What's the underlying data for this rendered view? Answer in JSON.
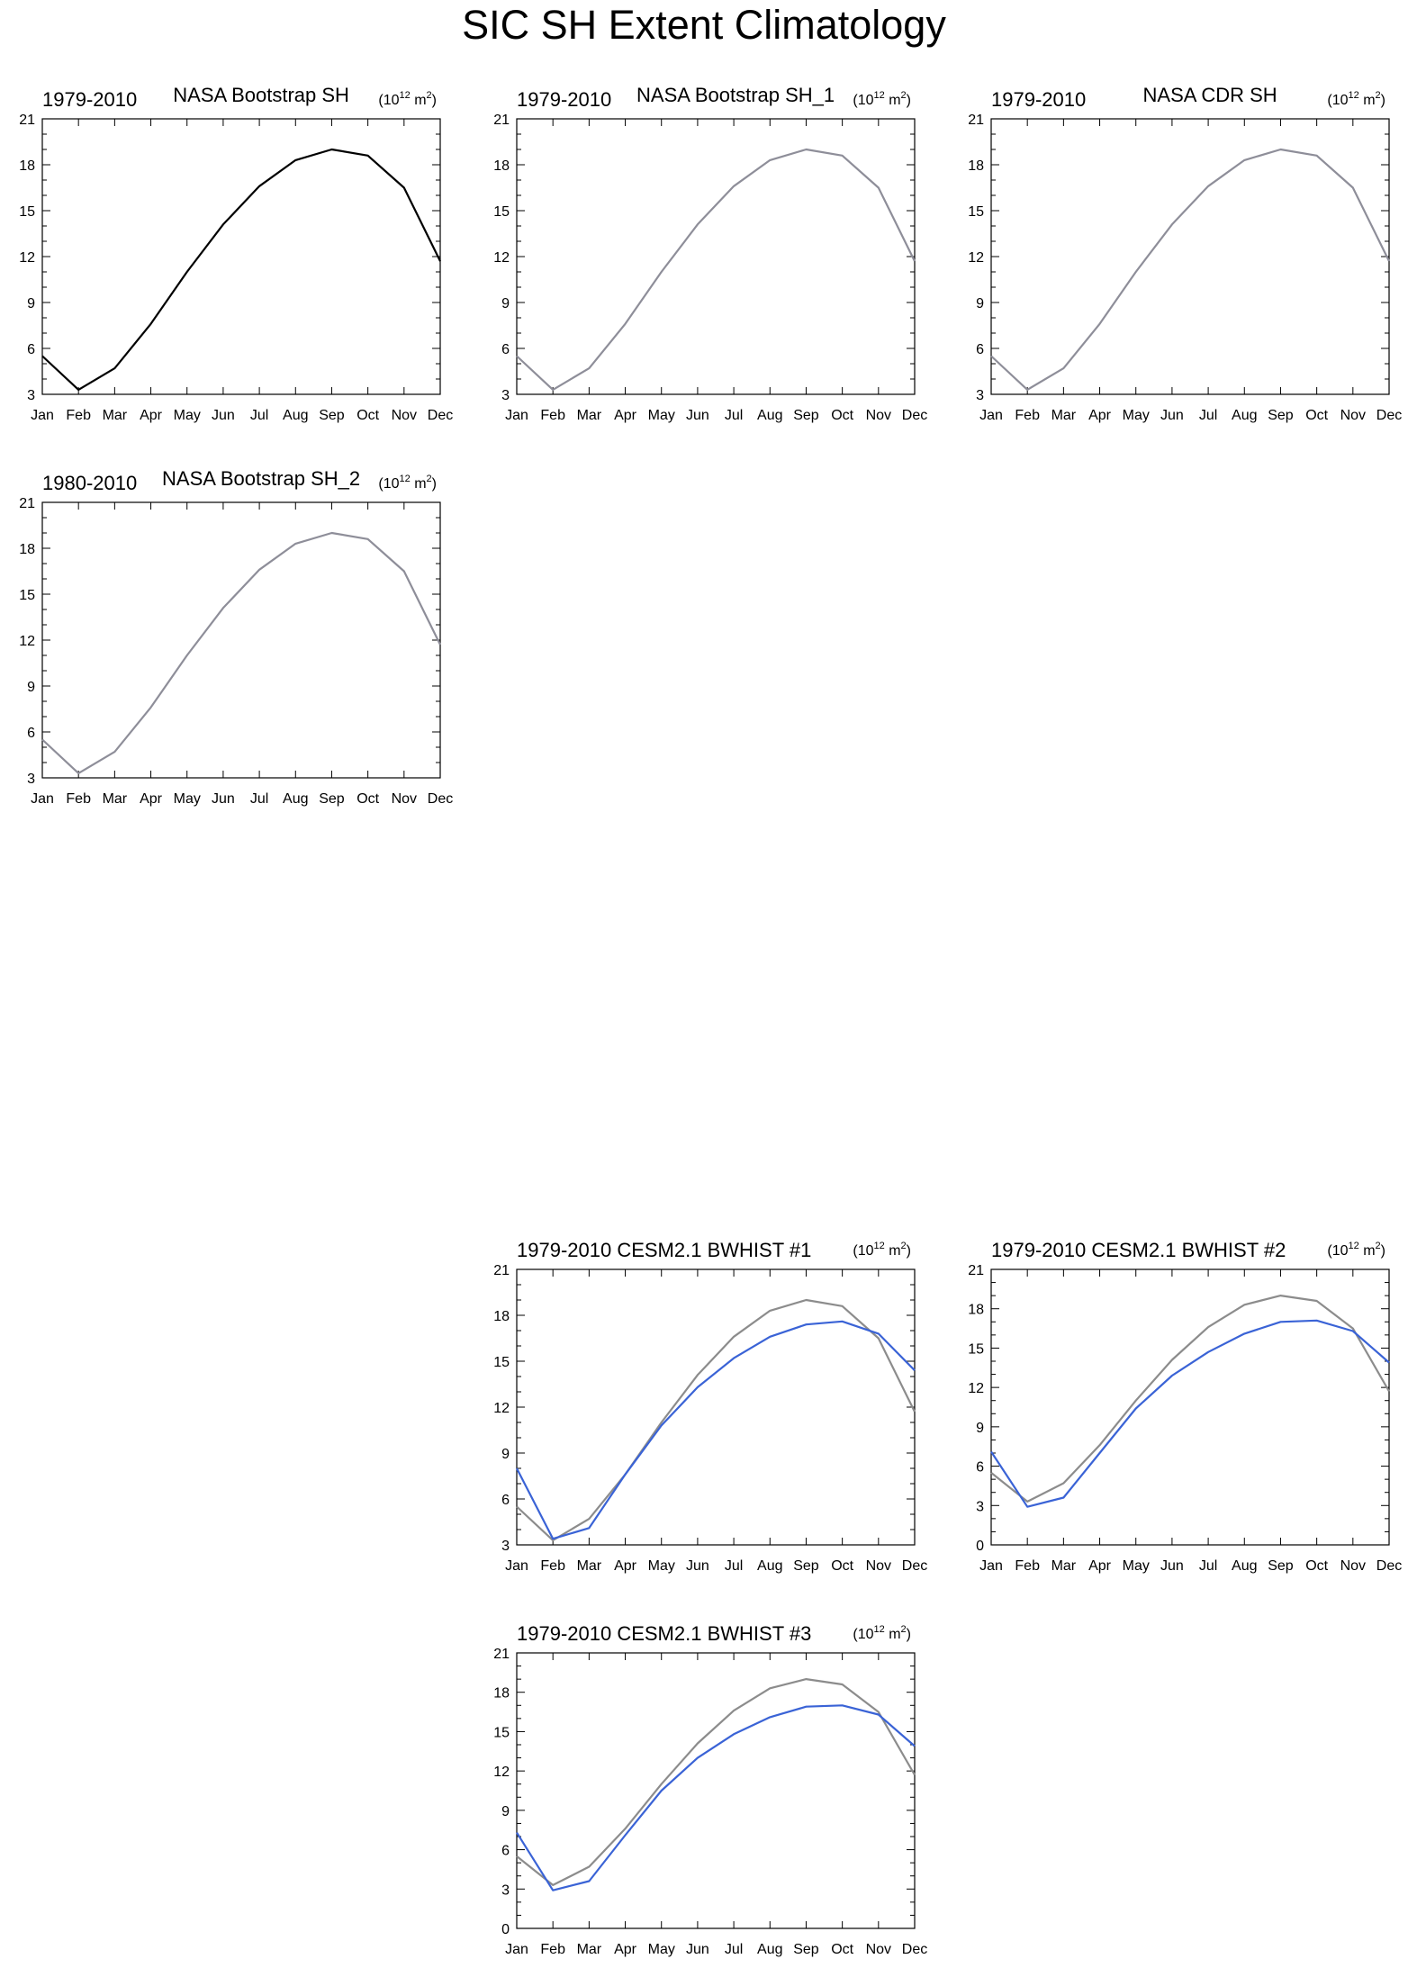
{
  "title": "SIC SH Extent Climatology",
  "units": {
    "prefix": "(10",
    "exponent": "12",
    "middle": " m",
    "power": "2",
    "suffix": ")"
  },
  "colors": {
    "observation": "#000000",
    "observation_grey": "#8e8e99",
    "reference_grey": "#8c8c8c",
    "model_blue": "#3a63d6"
  },
  "chart_data": [
    {
      "type": "line",
      "left_title": "1979-2010",
      "center_title": "NASA Bootstrap SH",
      "categories": [
        "Jan",
        "Feb",
        "Mar",
        "Apr",
        "May",
        "Jun",
        "Jul",
        "Aug",
        "Sep",
        "Oct",
        "Nov",
        "Dec"
      ],
      "ylim": [
        3,
        21
      ],
      "yticks": [
        "3",
        "6",
        "9",
        "12",
        "15",
        "18",
        "21"
      ],
      "series": [
        {
          "style": "observation",
          "values": [
            5.5,
            3.3,
            4.7,
            7.6,
            11.0,
            14.1,
            16.6,
            18.3,
            19.0,
            18.6,
            16.5,
            11.7
          ]
        }
      ]
    },
    {
      "type": "line",
      "left_title": "1979-2010",
      "center_title": "NASA Bootstrap SH_1",
      "categories": [
        "Jan",
        "Feb",
        "Mar",
        "Apr",
        "May",
        "Jun",
        "Jul",
        "Aug",
        "Sep",
        "Oct",
        "Nov",
        "Dec"
      ],
      "ylim": [
        3,
        21
      ],
      "yticks": [
        "3",
        "6",
        "9",
        "12",
        "15",
        "18",
        "21"
      ],
      "series": [
        {
          "style": "observation_grey",
          "values": [
            5.5,
            3.3,
            4.7,
            7.6,
            11.0,
            14.1,
            16.6,
            18.3,
            19.0,
            18.6,
            16.5,
            11.7
          ]
        }
      ]
    },
    {
      "type": "line",
      "left_title": "1979-2010",
      "center_title": "NASA CDR SH",
      "categories": [
        "Jan",
        "Feb",
        "Mar",
        "Apr",
        "May",
        "Jun",
        "Jul",
        "Aug",
        "Sep",
        "Oct",
        "Nov",
        "Dec"
      ],
      "ylim": [
        3,
        21
      ],
      "yticks": [
        "3",
        "6",
        "9",
        "12",
        "15",
        "18",
        "21"
      ],
      "series": [
        {
          "style": "observation_grey",
          "values": [
            5.5,
            3.3,
            4.7,
            7.6,
            11.0,
            14.1,
            16.6,
            18.3,
            19.0,
            18.6,
            16.5,
            11.7
          ]
        }
      ]
    },
    {
      "type": "line",
      "left_title": "1980-2010",
      "center_title": "NASA Bootstrap SH_2",
      "categories": [
        "Jan",
        "Feb",
        "Mar",
        "Apr",
        "May",
        "Jun",
        "Jul",
        "Aug",
        "Sep",
        "Oct",
        "Nov",
        "Dec"
      ],
      "ylim": [
        3,
        21
      ],
      "yticks": [
        "3",
        "6",
        "9",
        "12",
        "15",
        "18",
        "21"
      ],
      "series": [
        {
          "style": "observation_grey",
          "values": [
            5.5,
            3.3,
            4.7,
            7.6,
            11.0,
            14.1,
            16.6,
            18.3,
            19.0,
            18.6,
            16.5,
            11.7
          ]
        }
      ]
    },
    {
      "type": "line",
      "left_title": "1979-2010 CESM2.1 BWHIST #1",
      "center_title": "",
      "categories": [
        "Jan",
        "Feb",
        "Mar",
        "Apr",
        "May",
        "Jun",
        "Jul",
        "Aug",
        "Sep",
        "Oct",
        "Nov",
        "Dec"
      ],
      "ylim": [
        3,
        21
      ],
      "yticks": [
        "3",
        "6",
        "9",
        "12",
        "15",
        "18",
        "21"
      ],
      "series": [
        {
          "style": "reference_grey",
          "values": [
            5.5,
            3.3,
            4.7,
            7.6,
            11.0,
            14.1,
            16.6,
            18.3,
            19.0,
            18.6,
            16.5,
            11.7
          ]
        },
        {
          "style": "model_blue",
          "values": [
            8.0,
            3.4,
            4.1,
            7.6,
            10.8,
            13.3,
            15.2,
            16.6,
            17.4,
            17.6,
            16.8,
            14.4
          ]
        }
      ]
    },
    {
      "type": "line",
      "left_title": "1979-2010 CESM2.1 BWHIST #2",
      "center_title": "",
      "categories": [
        "Jan",
        "Feb",
        "Mar",
        "Apr",
        "May",
        "Jun",
        "Jul",
        "Aug",
        "Sep",
        "Oct",
        "Nov",
        "Dec"
      ],
      "ylim": [
        0,
        21
      ],
      "yticks": [
        "0",
        "3",
        "6",
        "9",
        "12",
        "15",
        "18",
        "21"
      ],
      "series": [
        {
          "style": "reference_grey",
          "values": [
            5.5,
            3.3,
            4.7,
            7.6,
            11.0,
            14.1,
            16.6,
            18.3,
            19.0,
            18.6,
            16.5,
            11.7
          ]
        },
        {
          "style": "model_blue",
          "values": [
            7.1,
            2.9,
            3.6,
            7.0,
            10.4,
            12.9,
            14.7,
            16.1,
            17.0,
            17.1,
            16.3,
            13.9
          ]
        }
      ]
    },
    {
      "type": "line",
      "left_title": "1979-2010 CESM2.1 BWHIST #3",
      "center_title": "",
      "categories": [
        "Jan",
        "Feb",
        "Mar",
        "Apr",
        "May",
        "Jun",
        "Jul",
        "Aug",
        "Sep",
        "Oct",
        "Nov",
        "Dec"
      ],
      "ylim": [
        0,
        21
      ],
      "yticks": [
        "0",
        "3",
        "6",
        "9",
        "12",
        "15",
        "18",
        "21"
      ],
      "series": [
        {
          "style": "reference_grey",
          "values": [
            5.5,
            3.3,
            4.7,
            7.6,
            11.0,
            14.1,
            16.6,
            18.3,
            19.0,
            18.6,
            16.5,
            11.7
          ]
        },
        {
          "style": "model_blue",
          "values": [
            7.3,
            2.9,
            3.6,
            7.1,
            10.5,
            13.0,
            14.8,
            16.1,
            16.9,
            17.0,
            16.3,
            13.9
          ]
        }
      ]
    }
  ]
}
